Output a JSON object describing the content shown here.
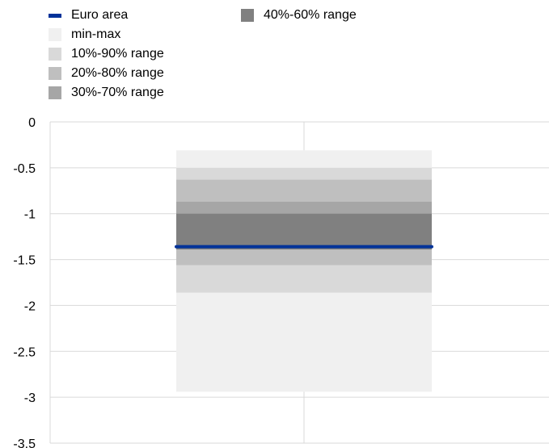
{
  "chart_data": {
    "type": "area",
    "title": "",
    "xlabel": "",
    "ylabel": "",
    "ylim": [
      -3.5,
      0
    ],
    "y_ticks": [
      "0",
      "-0.5",
      "-1",
      "-1.5",
      "-2",
      "-2.5",
      "-3",
      "-3.5"
    ],
    "y_tick_values": [
      0,
      -0.5,
      -1,
      -1.5,
      -2,
      -2.5,
      -3,
      -3.5
    ],
    "grid": true,
    "legend_position": "top-left",
    "bands": [
      {
        "name": "min-max",
        "low": -2.94,
        "high": -0.31,
        "color": "#f0f0f0"
      },
      {
        "name": "10%-90% range",
        "low": -1.86,
        "high": -0.5,
        "color": "#d9d9d9"
      },
      {
        "name": "20%-80% range",
        "low": -1.56,
        "high": -0.63,
        "color": "#bfbfbf"
      },
      {
        "name": "30%-70% range",
        "low": -1.39,
        "high": -0.87,
        "color": "#a6a6a6"
      },
      {
        "name": "40%-60% range",
        "low": -1.39,
        "high": -1.0,
        "color": "#808080"
      }
    ],
    "series": [
      {
        "name": "Euro area",
        "values": [
          -1.36
        ],
        "color": "#003299"
      }
    ]
  },
  "legend": {
    "items": [
      {
        "label": "Euro area",
        "kind": "line",
        "color": "#003299"
      },
      {
        "label": "min-max",
        "kind": "box",
        "color": "#f0f0f0"
      },
      {
        "label": "10%-90% range",
        "kind": "box",
        "color": "#d9d9d9"
      },
      {
        "label": "20%-80% range",
        "kind": "box",
        "color": "#bfbfbf"
      },
      {
        "label": "30%-70% range",
        "kind": "box",
        "color": "#a6a6a6"
      },
      {
        "label": "40%-60% range",
        "kind": "box",
        "color": "#808080"
      }
    ]
  }
}
